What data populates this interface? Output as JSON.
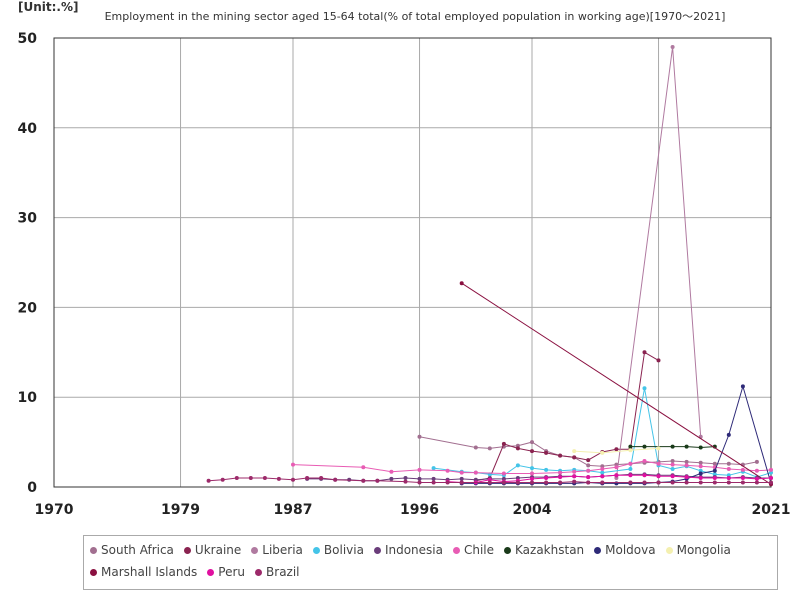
{
  "unit_label": "[Unit:.%]",
  "chart_data": {
    "type": "line",
    "title": "Employment in the mining sector aged 15-64 total(% of total employed population in working age)[1970～2021]",
    "xlabel": "",
    "ylabel": "",
    "xlim": [
      1970,
      2021
    ],
    "ylim": [
      0,
      50
    ],
    "x_ticks": [
      "1970",
      "1979",
      "1987",
      "1996",
      "2004",
      "2013",
      "2021"
    ],
    "y_ticks": [
      "0",
      "10",
      "20",
      "30",
      "40",
      "50"
    ],
    "grid": true,
    "legend_position": "bottom",
    "series": [
      {
        "name": "South Africa",
        "color": "#a26f90",
        "points": [
          [
            1996,
            5.6
          ],
          [
            2000,
            4.4
          ],
          [
            2001,
            4.3
          ],
          [
            2002,
            4.5
          ],
          [
            2003,
            4.6
          ],
          [
            2004,
            5.0
          ],
          [
            2005,
            4.0
          ],
          [
            2006,
            3.5
          ],
          [
            2007,
            3.3
          ],
          [
            2008,
            2.4
          ],
          [
            2009,
            2.3
          ],
          [
            2010,
            2.5
          ],
          [
            2011,
            2.6
          ],
          [
            2012,
            2.7
          ],
          [
            2013,
            2.8
          ],
          [
            2014,
            2.9
          ],
          [
            2015,
            2.8
          ],
          [
            2016,
            2.7
          ],
          [
            2017,
            2.6
          ],
          [
            2018,
            2.6
          ],
          [
            2019,
            2.5
          ],
          [
            2020,
            2.8
          ]
        ]
      },
      {
        "name": "Ukraine",
        "color": "#8a2350",
        "points": [
          [
            2000,
            0.7
          ],
          [
            2001,
            1.0
          ],
          [
            2002,
            4.8
          ],
          [
            2003,
            4.3
          ],
          [
            2004,
            4.0
          ],
          [
            2005,
            3.8
          ],
          [
            2006,
            3.5
          ],
          [
            2007,
            3.3
          ],
          [
            2008,
            3.0
          ],
          [
            2009,
            3.9
          ],
          [
            2010,
            4.2
          ],
          [
            2011,
            4.2
          ],
          [
            2012,
            15.0
          ],
          [
            2013,
            14.1
          ]
        ]
      },
      {
        "name": "Liberia",
        "color": "#b07aa0",
        "points": [
          [
            2010,
            1.0
          ],
          [
            2014,
            49.0
          ],
          [
            2016,
            5.6
          ]
        ]
      },
      {
        "name": "Bolivia",
        "color": "#44c4e8",
        "points": [
          [
            1997,
            2.1
          ],
          [
            1999,
            1.7
          ],
          [
            2000,
            1.6
          ],
          [
            2001,
            1.4
          ],
          [
            2002,
            1.3
          ],
          [
            2003,
            2.4
          ],
          [
            2004,
            2.1
          ],
          [
            2005,
            1.9
          ],
          [
            2006,
            1.8
          ],
          [
            2007,
            1.9
          ],
          [
            2008,
            1.8
          ],
          [
            2009,
            1.6
          ],
          [
            2011,
            2.0
          ],
          [
            2012,
            11.0
          ],
          [
            2013,
            2.4
          ],
          [
            2014,
            2.0
          ],
          [
            2015,
            2.3
          ],
          [
            2016,
            1.8
          ],
          [
            2017,
            1.4
          ],
          [
            2018,
            1.3
          ],
          [
            2019,
            1.7
          ],
          [
            2020,
            1.1
          ],
          [
            2021,
            1.6
          ]
        ]
      },
      {
        "name": "Indonesia",
        "color": "#6a3d7a",
        "points": [
          [
            1988,
            0.9
          ],
          [
            1989,
            0.9
          ],
          [
            1990,
            0.8
          ],
          [
            1991,
            0.8
          ],
          [
            1992,
            0.7
          ],
          [
            1993,
            0.7
          ],
          [
            1994,
            0.9
          ],
          [
            1995,
            1.0
          ],
          [
            1996,
            0.9
          ],
          [
            1997,
            0.9
          ],
          [
            1998,
            0.8
          ],
          [
            1999,
            0.9
          ],
          [
            2000,
            0.8
          ],
          [
            2001,
            0.9
          ],
          [
            2002,
            0.9
          ],
          [
            2003,
            1.0
          ],
          [
            2004,
            1.1
          ],
          [
            2005,
            1.1
          ],
          [
            2006,
            1.2
          ],
          [
            2007,
            1.2
          ],
          [
            2008,
            1.1
          ],
          [
            2009,
            1.2
          ],
          [
            2010,
            1.3
          ],
          [
            2011,
            1.4
          ],
          [
            2012,
            1.4
          ],
          [
            2013,
            1.3
          ],
          [
            2014,
            1.3
          ],
          [
            2015,
            1.2
          ],
          [
            2016,
            1.1
          ],
          [
            2017,
            1.1
          ],
          [
            2018,
            1.0
          ],
          [
            2019,
            1.1
          ],
          [
            2020,
            1.0
          ],
          [
            2021,
            1.0
          ]
        ]
      },
      {
        "name": "Chile",
        "color": "#e85cb4",
        "points": [
          [
            1987,
            2.5
          ],
          [
            1992,
            2.2
          ],
          [
            1994,
            1.7
          ],
          [
            1996,
            1.9
          ],
          [
            1998,
            1.8
          ],
          [
            1999,
            1.6
          ],
          [
            2000,
            1.6
          ],
          [
            2002,
            1.5
          ],
          [
            2004,
            1.5
          ],
          [
            2006,
            1.6
          ],
          [
            2007,
            1.7
          ],
          [
            2008,
            1.8
          ],
          [
            2009,
            2.0
          ],
          [
            2010,
            2.2
          ],
          [
            2011,
            2.6
          ],
          [
            2012,
            2.9
          ],
          [
            2013,
            2.6
          ],
          [
            2014,
            2.5
          ],
          [
            2015,
            2.4
          ],
          [
            2016,
            2.3
          ],
          [
            2017,
            2.2
          ],
          [
            2018,
            2.0
          ],
          [
            2019,
            1.9
          ],
          [
            2020,
            1.8
          ],
          [
            2021,
            1.9
          ]
        ]
      },
      {
        "name": "Kazakhstan",
        "color": "#1a3a1a",
        "points": [
          [
            2011,
            4.5
          ],
          [
            2012,
            4.5
          ],
          [
            2014,
            4.5
          ],
          [
            2015,
            4.5
          ],
          [
            2016,
            4.4
          ],
          [
            2017,
            4.5
          ]
        ]
      },
      {
        "name": "Moldova",
        "color": "#2e2a78",
        "points": [
          [
            1999,
            0.4
          ],
          [
            2000,
            0.4
          ],
          [
            2001,
            0.4
          ],
          [
            2002,
            0.4
          ],
          [
            2003,
            0.4
          ],
          [
            2004,
            0.4
          ],
          [
            2005,
            0.4
          ],
          [
            2006,
            0.4
          ],
          [
            2007,
            0.4
          ],
          [
            2008,
            0.5
          ],
          [
            2009,
            0.4
          ],
          [
            2010,
            0.4
          ],
          [
            2011,
            0.4
          ],
          [
            2012,
            0.4
          ],
          [
            2013,
            0.5
          ],
          [
            2014,
            0.6
          ],
          [
            2015,
            0.9
          ],
          [
            2016,
            1.5
          ],
          [
            2017,
            1.8
          ],
          [
            2018,
            5.8
          ],
          [
            2019,
            11.2
          ],
          [
            2021,
            0.4
          ]
        ]
      },
      {
        "name": "Mongolia",
        "color": "#f4f0b0",
        "points": [
          [
            2007,
            4.0
          ],
          [
            2009,
            3.8
          ],
          [
            2011,
            4.1
          ],
          [
            2013,
            4.3
          ]
        ]
      },
      {
        "name": "Marshall Islands",
        "color": "#8a1040",
        "points": [
          [
            1999,
            22.7
          ],
          [
            2021,
            0.3
          ]
        ]
      },
      {
        "name": "Peru",
        "color": "#e010a0",
        "points": [
          [
            1998,
            0.6
          ],
          [
            1999,
            0.5
          ],
          [
            2000,
            0.5
          ],
          [
            2001,
            0.8
          ],
          [
            2002,
            0.6
          ],
          [
            2003,
            0.7
          ],
          [
            2004,
            0.9
          ],
          [
            2005,
            1.0
          ],
          [
            2006,
            1.1
          ],
          [
            2007,
            1.2
          ],
          [
            2008,
            1.1
          ],
          [
            2009,
            1.2
          ],
          [
            2010,
            1.3
          ],
          [
            2011,
            1.3
          ],
          [
            2012,
            1.3
          ],
          [
            2013,
            1.2
          ],
          [
            2014,
            1.2
          ],
          [
            2015,
            1.1
          ],
          [
            2016,
            1.0
          ],
          [
            2017,
            1.0
          ],
          [
            2018,
            1.0
          ],
          [
            2019,
            1.0
          ],
          [
            2020,
            0.9
          ],
          [
            2021,
            1.0
          ]
        ]
      },
      {
        "name": "Brazil",
        "color": "#9c2a6a",
        "points": [
          [
            1981,
            0.7
          ],
          [
            1982,
            0.8
          ],
          [
            1983,
            1.0
          ],
          [
            1984,
            1.0
          ],
          [
            1985,
            1.0
          ],
          [
            1986,
            0.9
          ],
          [
            1987,
            0.8
          ],
          [
            1988,
            1.0
          ],
          [
            1989,
            1.0
          ],
          [
            1990,
            0.8
          ],
          [
            1992,
            0.7
          ],
          [
            1993,
            0.7
          ],
          [
            1995,
            0.6
          ],
          [
            1996,
            0.5
          ],
          [
            1997,
            0.5
          ],
          [
            1998,
            0.5
          ],
          [
            1999,
            0.5
          ],
          [
            2001,
            0.5
          ],
          [
            2002,
            0.5
          ],
          [
            2003,
            0.5
          ],
          [
            2004,
            0.5
          ],
          [
            2005,
            0.5
          ],
          [
            2006,
            0.5
          ],
          [
            2007,
            0.6
          ],
          [
            2008,
            0.5
          ],
          [
            2009,
            0.5
          ],
          [
            2011,
            0.5
          ],
          [
            2012,
            0.5
          ],
          [
            2013,
            0.5
          ],
          [
            2014,
            0.5
          ],
          [
            2015,
            0.5
          ],
          [
            2016,
            0.5
          ],
          [
            2017,
            0.5
          ],
          [
            2018,
            0.5
          ],
          [
            2019,
            0.5
          ],
          [
            2020,
            0.5
          ],
          [
            2021,
            0.5
          ]
        ]
      }
    ]
  }
}
